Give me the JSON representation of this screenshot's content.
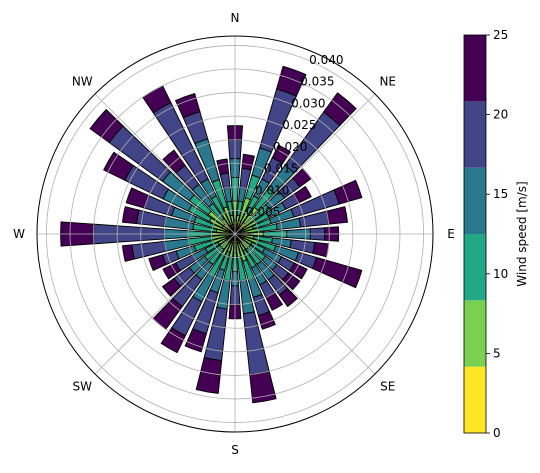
{
  "chart_data": {
    "type": "windrose",
    "directions": {
      "labels": [
        "N",
        "NE",
        "E",
        "SE",
        "S",
        "SW",
        "W",
        "NW"
      ]
    },
    "radial_ticks": [
      "0.005",
      "0.010",
      "0.015",
      "0.020",
      "0.025",
      "0.030",
      "0.035",
      "0.040"
    ],
    "radial_tick_values": [
      0.005,
      0.01,
      0.015,
      0.02,
      0.025,
      0.03,
      0.035,
      0.04
    ],
    "rmax": 0.042,
    "sector_count": 36,
    "sector_step_deg": 10,
    "speed_bins": [
      {
        "range": "0-5",
        "color": "#fde725"
      },
      {
        "range": "5-10",
        "color": "#7ad151"
      },
      {
        "range": "10-15",
        "color": "#22a884"
      },
      {
        "range": "15-20",
        "color": "#2a788e"
      },
      {
        "range": "20-25",
        "color": "#414487"
      },
      {
        "range": "25+",
        "color": "#440154"
      }
    ],
    "sectors": [
      {
        "deg": 0,
        "cum": [
          0.003,
          0.007,
          0.012,
          0.016,
          0.02,
          0.023
        ]
      },
      {
        "deg": 10,
        "cum": [
          0.002,
          0.004,
          0.007,
          0.01,
          0.014,
          0.017
        ]
      },
      {
        "deg": 20,
        "cum": [
          0.003,
          0.008,
          0.013,
          0.019,
          0.032,
          0.037
        ]
      },
      {
        "deg": 30,
        "cum": [
          0.002,
          0.005,
          0.009,
          0.013,
          0.018,
          0.021
        ]
      },
      {
        "deg": 40,
        "cum": [
          0.003,
          0.007,
          0.012,
          0.018,
          0.032,
          0.037
        ]
      },
      {
        "deg": 50,
        "cum": [
          0.002,
          0.005,
          0.009,
          0.013,
          0.017,
          0.02
        ]
      },
      {
        "deg": 60,
        "cum": [
          0.002,
          0.005,
          0.008,
          0.012,
          0.015,
          0.018
        ]
      },
      {
        "deg": 70,
        "cum": [
          0.002,
          0.004,
          0.008,
          0.013,
          0.023,
          0.028
        ]
      },
      {
        "deg": 80,
        "cum": [
          0.002,
          0.005,
          0.009,
          0.014,
          0.02,
          0.024
        ]
      },
      {
        "deg": 90,
        "cum": [
          0.003,
          0.006,
          0.011,
          0.016,
          0.019,
          0.022
        ]
      },
      {
        "deg": 100,
        "cum": [
          0.002,
          0.004,
          0.008,
          0.012,
          0.017,
          0.02
        ]
      },
      {
        "deg": 110,
        "cum": [
          0.002,
          0.005,
          0.009,
          0.014,
          0.018,
          0.028
        ]
      },
      {
        "deg": 120,
        "cum": [
          0.002,
          0.004,
          0.007,
          0.011,
          0.014,
          0.017
        ]
      },
      {
        "deg": 130,
        "cum": [
          0.002,
          0.004,
          0.008,
          0.011,
          0.014,
          0.017
        ]
      },
      {
        "deg": 140,
        "cum": [
          0.002,
          0.004,
          0.008,
          0.012,
          0.016,
          0.019
        ]
      },
      {
        "deg": 150,
        "cum": [
          0.002,
          0.004,
          0.008,
          0.012,
          0.015,
          0.018
        ]
      },
      {
        "deg": 160,
        "cum": [
          0.002,
          0.006,
          0.01,
          0.014,
          0.018,
          0.021
        ]
      },
      {
        "deg": 170,
        "cum": [
          0.002,
          0.005,
          0.01,
          0.017,
          0.03,
          0.036
        ]
      },
      {
        "deg": 180,
        "cum": [
          0.002,
          0.004,
          0.008,
          0.011,
          0.015,
          0.018
        ]
      },
      {
        "deg": 190,
        "cum": [
          0.002,
          0.005,
          0.01,
          0.016,
          0.027,
          0.034
        ]
      },
      {
        "deg": 200,
        "cum": [
          0.002,
          0.004,
          0.008,
          0.013,
          0.022,
          0.026
        ]
      },
      {
        "deg": 210,
        "cum": [
          0.002,
          0.005,
          0.01,
          0.016,
          0.024,
          0.028
        ]
      },
      {
        "deg": 220,
        "cum": [
          0.002,
          0.004,
          0.008,
          0.012,
          0.019,
          0.025
        ]
      },
      {
        "deg": 230,
        "cum": [
          0.002,
          0.004,
          0.008,
          0.012,
          0.016,
          0.019
        ]
      },
      {
        "deg": 240,
        "cum": [
          0.002,
          0.004,
          0.007,
          0.01,
          0.014,
          0.017
        ]
      },
      {
        "deg": 250,
        "cum": [
          0.002,
          0.005,
          0.009,
          0.013,
          0.016,
          0.019
        ]
      },
      {
        "deg": 260,
        "cum": [
          0.002,
          0.005,
          0.01,
          0.015,
          0.022,
          0.024
        ]
      },
      {
        "deg": 270,
        "cum": [
          0.002,
          0.005,
          0.01,
          0.015,
          0.03,
          0.037
        ]
      },
      {
        "deg": 280,
        "cum": [
          0.002,
          0.004,
          0.009,
          0.015,
          0.021,
          0.024
        ]
      },
      {
        "deg": 290,
        "cum": [
          0.002,
          0.005,
          0.009,
          0.014,
          0.02,
          0.024
        ]
      },
      {
        "deg": 300,
        "cum": [
          0.003,
          0.006,
          0.011,
          0.017,
          0.026,
          0.031
        ]
      },
      {
        "deg": 310,
        "cum": [
          0.003,
          0.007,
          0.012,
          0.019,
          0.033,
          0.038
        ]
      },
      {
        "deg": 320,
        "cum": [
          0.002,
          0.004,
          0.008,
          0.013,
          0.018,
          0.022
        ]
      },
      {
        "deg": 330,
        "cum": [
          0.002,
          0.005,
          0.009,
          0.013,
          0.031,
          0.035
        ]
      },
      {
        "deg": 340,
        "cum": [
          0.002,
          0.006,
          0.012,
          0.021,
          0.027,
          0.031
        ]
      },
      {
        "deg": 350,
        "cum": [
          0.002,
          0.004,
          0.007,
          0.01,
          0.013,
          0.016
        ]
      }
    ],
    "colorbar": {
      "label": "Wind speed [m/s]",
      "ticks": [
        "0",
        "5",
        "10",
        "15",
        "20",
        "25"
      ],
      "tick_values": [
        0,
        5,
        10,
        15,
        20,
        25
      ]
    },
    "grid": true,
    "legend": "colorbar-right"
  }
}
